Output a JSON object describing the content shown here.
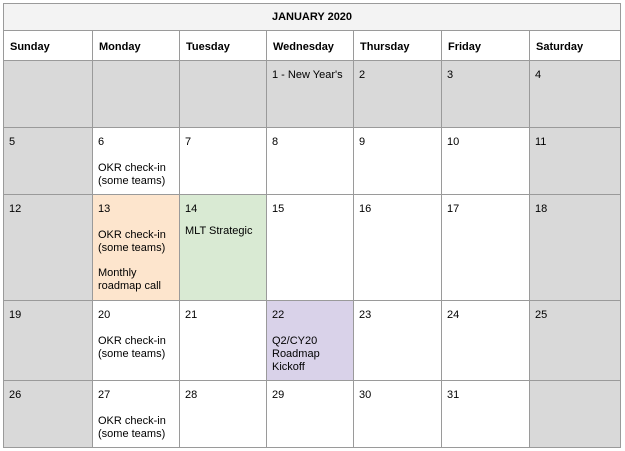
{
  "calendar": {
    "title": "JANUARY 2020",
    "days": [
      "Sunday",
      "Monday",
      "Tuesday",
      "Wednesday",
      "Thursday",
      "Friday",
      "Saturday"
    ],
    "colors": {
      "grid_border": "#9a9a9a",
      "header_bg": "#f3f3f3",
      "weekend_gray": "#d9d9d9",
      "highlight_orange": "#fde5cd",
      "highlight_green": "#d9ead3",
      "highlight_purple": "#d9d2e9"
    },
    "weeks": [
      [
        {
          "date": "",
          "events": [],
          "bg": "gray"
        },
        {
          "date": "",
          "events": [],
          "bg": "gray"
        },
        {
          "date": "",
          "events": [],
          "bg": "gray"
        },
        {
          "date": "1 - New Year's",
          "events": [],
          "bg": "gray"
        },
        {
          "date": "2",
          "events": [],
          "bg": "gray"
        },
        {
          "date": "3",
          "events": [],
          "bg": "gray"
        },
        {
          "date": "4",
          "events": [],
          "bg": "gray"
        }
      ],
      [
        {
          "date": "5",
          "events": [],
          "bg": "gray"
        },
        {
          "date": "6",
          "events": [
            "OKR check-in\n(some teams)"
          ],
          "bg": "white"
        },
        {
          "date": "7",
          "events": [],
          "bg": "white"
        },
        {
          "date": "8",
          "events": [],
          "bg": "white"
        },
        {
          "date": "9",
          "events": [],
          "bg": "white"
        },
        {
          "date": "10",
          "events": [],
          "bg": "white"
        },
        {
          "date": "11",
          "events": [],
          "bg": "gray"
        }
      ],
      [
        {
          "date": "12",
          "events": [],
          "bg": "gray"
        },
        {
          "date": "13",
          "events": [
            "OKR check-in\n(some teams)",
            "Monthly\nroadmap call"
          ],
          "bg": "orange"
        },
        {
          "date": "14",
          "events": [
            "MLT Strategic"
          ],
          "bg": "green"
        },
        {
          "date": "15",
          "events": [],
          "bg": "white"
        },
        {
          "date": "16",
          "events": [],
          "bg": "white"
        },
        {
          "date": "17",
          "events": [],
          "bg": "white"
        },
        {
          "date": "18",
          "events": [],
          "bg": "gray"
        }
      ],
      [
        {
          "date": "19",
          "events": [],
          "bg": "gray"
        },
        {
          "date": "20",
          "events": [
            "OKR check-in\n(some teams)"
          ],
          "bg": "white"
        },
        {
          "date": "21",
          "events": [],
          "bg": "white"
        },
        {
          "date": "22",
          "events": [
            "Q2/CY20\nRoadmap\nKickoff"
          ],
          "bg": "purple"
        },
        {
          "date": "23",
          "events": [],
          "bg": "white"
        },
        {
          "date": "24",
          "events": [],
          "bg": "white"
        },
        {
          "date": "25",
          "events": [],
          "bg": "gray"
        }
      ],
      [
        {
          "date": "26",
          "events": [],
          "bg": "gray"
        },
        {
          "date": "27",
          "events": [
            "OKR check-in\n(some teams)"
          ],
          "bg": "white"
        },
        {
          "date": "28",
          "events": [],
          "bg": "white"
        },
        {
          "date": "29",
          "events": [],
          "bg": "white"
        },
        {
          "date": "30",
          "events": [],
          "bg": "white"
        },
        {
          "date": "31",
          "events": [],
          "bg": "white"
        },
        {
          "date": "",
          "events": [],
          "bg": "gray"
        }
      ]
    ]
  }
}
